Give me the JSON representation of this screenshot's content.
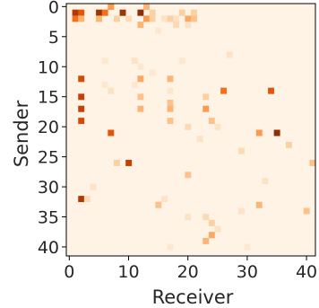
{
  "chart_data": {
    "type": "heatmap",
    "title": "",
    "xlabel": "Receiver",
    "ylabel": "Sender",
    "n_rows": 42,
    "n_cols": 42,
    "x_ticks": [
      0,
      10,
      20,
      30,
      40
    ],
    "y_ticks": [
      0,
      5,
      10,
      15,
      20,
      25,
      30,
      35,
      40
    ],
    "colormap": "Oranges",
    "color_range": [
      0,
      1
    ],
    "colors": {
      "low": "#fff5eb",
      "high": "#7f2704"
    },
    "background_level": 0.02,
    "grid": false,
    "legend": "none",
    "cells": [
      [
        0,
        7,
        0.45
      ],
      [
        0,
        13,
        0.35
      ],
      [
        1,
        1,
        0.85
      ],
      [
        1,
        2,
        0.7
      ],
      [
        1,
        5,
        0.9
      ],
      [
        1,
        6,
        0.6
      ],
      [
        1,
        9,
        0.9
      ],
      [
        1,
        12,
        0.95
      ],
      [
        1,
        14,
        0.25
      ],
      [
        1,
        19,
        0.25
      ],
      [
        1,
        21,
        0.25
      ],
      [
        2,
        1,
        0.6
      ],
      [
        2,
        2,
        0.35
      ],
      [
        2,
        5,
        0.35
      ],
      [
        2,
        8,
        0.25
      ],
      [
        2,
        10,
        0.2
      ],
      [
        2,
        13,
        0.45
      ],
      [
        2,
        14,
        0.25
      ],
      [
        2,
        16,
        0.15
      ],
      [
        2,
        17,
        0.25
      ],
      [
        2,
        18,
        0.15
      ],
      [
        2,
        20,
        0.4
      ],
      [
        2,
        21,
        0.3
      ],
      [
        3,
        12,
        0.35
      ],
      [
        3,
        18,
        0.2
      ],
      [
        3,
        20,
        0.15
      ],
      [
        4,
        15,
        0.12
      ],
      [
        8,
        27,
        0.15
      ],
      [
        9,
        6,
        0.12
      ],
      [
        9,
        11,
        0.15
      ],
      [
        9,
        19,
        0.12
      ],
      [
        10,
        12,
        0.12
      ],
      [
        11,
        14,
        0.12
      ],
      [
        12,
        2,
        0.75
      ],
      [
        12,
        12,
        0.4
      ],
      [
        12,
        17,
        0.35
      ],
      [
        13,
        6,
        0.12
      ],
      [
        13,
        11,
        0.12
      ],
      [
        14,
        7,
        0.15
      ],
      [
        14,
        17,
        0.12
      ],
      [
        14,
        26,
        0.6
      ],
      [
        14,
        34,
        0.7
      ],
      [
        15,
        2,
        0.8
      ],
      [
        15,
        12,
        0.3
      ],
      [
        15,
        23,
        0.25
      ],
      [
        16,
        17,
        0.3
      ],
      [
        17,
        2,
        0.8
      ],
      [
        17,
        12,
        0.35
      ],
      [
        17,
        17,
        0.35
      ],
      [
        17,
        23,
        0.45
      ],
      [
        19,
        2,
        0.75
      ],
      [
        19,
        17,
        0.3
      ],
      [
        19,
        24,
        0.3
      ],
      [
        20,
        20,
        0.2
      ],
      [
        20,
        25,
        0.15
      ],
      [
        21,
        7,
        0.7
      ],
      [
        21,
        32,
        0.45
      ],
      [
        21,
        35,
        0.95
      ],
      [
        22,
        22,
        0.15
      ],
      [
        23,
        37,
        0.25
      ],
      [
        24,
        29,
        0.2
      ],
      [
        26,
        8,
        0.25
      ],
      [
        26,
        10,
        0.8
      ],
      [
        26,
        41,
        0.3
      ],
      [
        28,
        20,
        0.3
      ],
      [
        29,
        33,
        0.15
      ],
      [
        30,
        4,
        0.15
      ],
      [
        32,
        2,
        0.85
      ],
      [
        32,
        3,
        0.2
      ],
      [
        32,
        16,
        0.15
      ],
      [
        33,
        15,
        0.3
      ],
      [
        33,
        32,
        0.35
      ],
      [
        34,
        29,
        0.15
      ],
      [
        34,
        40,
        0.3
      ],
      [
        35,
        20,
        0.15
      ],
      [
        35,
        23,
        0.2
      ],
      [
        36,
        24,
        0.25
      ],
      [
        37,
        25,
        0.15
      ],
      [
        38,
        24,
        0.4
      ],
      [
        39,
        23,
        0.35
      ],
      [
        40,
        17,
        0.12
      ],
      [
        40,
        30,
        0.12
      ]
    ]
  }
}
